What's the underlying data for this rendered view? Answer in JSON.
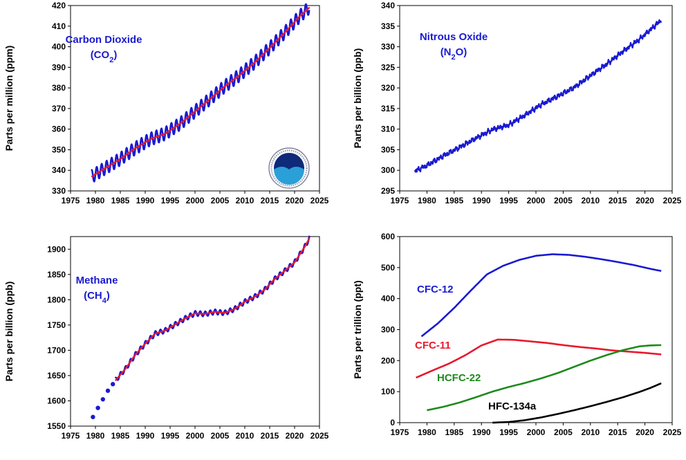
{
  "chart_data": [
    {
      "type": "line",
      "ylabel": "Parts per million (ppm)",
      "xlim": [
        1975,
        2025
      ],
      "ylim": [
        330,
        420
      ],
      "xticks": [
        1975,
        1980,
        1985,
        1990,
        1995,
        2000,
        2005,
        2010,
        2015,
        2020,
        2025
      ],
      "yticks": [
        330,
        340,
        350,
        360,
        370,
        380,
        390,
        400,
        410,
        420
      ],
      "annotations": [
        {
          "text": "Carbon Dioxide",
          "color": "#1a1ad1"
        },
        {
          "text": "(CO",
          "sub": "2",
          "tail": ")",
          "color": "#1a1ad1"
        }
      ],
      "logo": "noaa-logo",
      "series": [
        {
          "style": "monthly",
          "color": "#1a1ad1",
          "x": [
            1979.2,
            1982,
            1985,
            1988,
            1991,
            1994,
            1997,
            2000,
            2003,
            2006,
            2009,
            2012,
            2015,
            2018,
            2021,
            2023
          ],
          "y": [
            336.9,
            341.1,
            345.5,
            350.7,
            355.1,
            357.8,
            362.6,
            368.6,
            374.6,
            380.8,
            386.3,
            392.4,
            399.4,
            406.8,
            414.7,
            419.1
          ],
          "amplitude": 3.2
        },
        {
          "style": "trend",
          "color": "#e8192c",
          "x": [
            1979.2,
            1982,
            1985,
            1988,
            1991,
            1994,
            1997,
            2000,
            2003,
            2006,
            2009,
            2012,
            2015,
            2018,
            2021,
            2023
          ],
          "y": [
            336.9,
            341.1,
            345.5,
            350.7,
            355.1,
            357.8,
            362.6,
            368.6,
            374.6,
            380.8,
            386.3,
            392.4,
            399.4,
            406.8,
            414.7,
            419.1
          ]
        }
      ]
    },
    {
      "type": "line",
      "ylabel": "Parts per billion (ppb)",
      "xlim": [
        1975,
        2025
      ],
      "ylim": [
        295,
        340
      ],
      "xticks": [
        1975,
        1980,
        1985,
        1990,
        1995,
        2000,
        2005,
        2010,
        2015,
        2020,
        2025
      ],
      "yticks": [
        295,
        300,
        305,
        310,
        315,
        320,
        325,
        330,
        335,
        340
      ],
      "annotations": [
        {
          "text": "Nitrous Oxide",
          "color": "#1a1ad1"
        },
        {
          "text": "(N",
          "sub": "2",
          "tail": "O)",
          "color": "#1a1ad1"
        }
      ],
      "series": [
        {
          "style": "noisy",
          "color": "#1a1ad1",
          "x": [
            1977.8,
            1980,
            1983,
            1986,
            1989,
            1992,
            1995,
            1998,
            2001,
            2004,
            2007,
            2010,
            2013,
            2016,
            2019,
            2022,
            2023
          ],
          "y": [
            299.8,
            301.2,
            303.5,
            305.6,
            307.8,
            309.9,
            311.0,
            313.4,
            316.0,
            318.0,
            320.1,
            323.0,
            325.8,
            328.9,
            331.8,
            335.3,
            336.5
          ],
          "amplitude": 0.45
        }
      ]
    },
    {
      "type": "line",
      "ylabel": "Parts per billion (ppb)",
      "xlim": [
        1975,
        2025
      ],
      "ylim": [
        1550,
        1925
      ],
      "xticks": [
        1975,
        1980,
        1985,
        1990,
        1995,
        2000,
        2005,
        2010,
        2015,
        2020,
        2025
      ],
      "yticks": [
        1550,
        1600,
        1650,
        1700,
        1750,
        1800,
        1850,
        1900
      ],
      "annotations": [
        {
          "text": "Methane",
          "color": "#1a1ad1"
        },
        {
          "text": "(CH",
          "sub": "4",
          "tail": ")",
          "color": "#1a1ad1"
        }
      ],
      "series": [
        {
          "style": "points",
          "color": "#1a1ad1",
          "x": [
            1979.5,
            1980.5,
            1981.5,
            1982.5,
            1983.5
          ],
          "y": [
            1568,
            1586,
            1603,
            1620,
            1633
          ]
        },
        {
          "style": "monthly",
          "color": "#1a1ad1",
          "x": [
            1984,
            1986,
            1988,
            1990,
            1992,
            1994,
            1996,
            1998,
            2000,
            2002,
            2004,
            2006,
            2008,
            2010,
            2012,
            2014,
            2016,
            2018,
            2020,
            2022,
            2023
          ],
          "y": [
            1640,
            1663,
            1691,
            1713,
            1733,
            1739,
            1751,
            1763,
            1773,
            1772,
            1776,
            1774,
            1782,
            1796,
            1806,
            1820,
            1841,
            1857,
            1874,
            1904,
            1922
          ],
          "amplitude": 5
        },
        {
          "style": "trend",
          "color": "#e8192c",
          "x": [
            1984,
            1986,
            1988,
            1990,
            1992,
            1994,
            1996,
            1998,
            2000,
            2002,
            2004,
            2006,
            2008,
            2010,
            2012,
            2014,
            2016,
            2018,
            2020,
            2022,
            2023
          ],
          "y": [
            1640,
            1663,
            1691,
            1713,
            1733,
            1739,
            1751,
            1763,
            1773,
            1772,
            1776,
            1774,
            1782,
            1796,
            1806,
            1820,
            1841,
            1857,
            1874,
            1904,
            1922
          ]
        }
      ]
    },
    {
      "type": "line",
      "ylabel": "Parts per trillion (ppt)",
      "xlim": [
        1975,
        2025
      ],
      "ylim": [
        0,
        600
      ],
      "xticks": [
        1975,
        1980,
        1985,
        1990,
        1995,
        2000,
        2005,
        2010,
        2015,
        2020,
        2025
      ],
      "yticks": [
        0,
        100,
        200,
        300,
        400,
        500,
        600
      ],
      "annotations": [
        {
          "text": "CFC-12",
          "color": "#1a1ad1"
        },
        {
          "text": "CFC-11",
          "color": "#e8192c"
        },
        {
          "text": "HCFC-22",
          "color": "#1c8a1c"
        },
        {
          "text": "HFC-134a",
          "color": "#000000"
        }
      ],
      "series": [
        {
          "name": "CFC-12",
          "style": "smooth",
          "color": "#1a1ad1",
          "x": [
            1979,
            1982,
            1985,
            1988,
            1991,
            1994,
            1997,
            2000,
            2003,
            2006,
            2009,
            2012,
            2015,
            2018,
            2021,
            2023
          ],
          "y": [
            278,
            320,
            370,
            425,
            478,
            506,
            525,
            538,
            543,
            541,
            535,
            527,
            518,
            508,
            496,
            489
          ]
        },
        {
          "name": "CFC-11",
          "style": "smooth",
          "color": "#e8192c",
          "x": [
            1978,
            1981,
            1984,
            1987,
            1990,
            1993,
            1996,
            1999,
            2002,
            2005,
            2008,
            2011,
            2014,
            2017,
            2020,
            2023
          ],
          "y": [
            145,
            168,
            190,
            217,
            249,
            268,
            267,
            262,
            257,
            250,
            244,
            239,
            233,
            229,
            225,
            220
          ]
        },
        {
          "name": "HCFC-22",
          "style": "smooth",
          "color": "#1c8a1c",
          "x": [
            1980,
            1983,
            1986,
            1989,
            1992,
            1995,
            1998,
            2001,
            2004,
            2007,
            2010,
            2013,
            2016,
            2019,
            2021,
            2023
          ],
          "y": [
            40,
            51,
            65,
            82,
            100,
            115,
            128,
            143,
            160,
            180,
            200,
            218,
            234,
            246,
            249,
            250
          ]
        },
        {
          "name": "HFC-134a",
          "style": "smooth",
          "color": "#000000",
          "x": [
            1992,
            1995,
            1998,
            2001,
            2004,
            2007,
            2010,
            2013,
            2016,
            2019,
            2021,
            2023
          ],
          "y": [
            0,
            2,
            8,
            17,
            28,
            40,
            53,
            67,
            82,
            99,
            112,
            127
          ]
        }
      ]
    }
  ]
}
